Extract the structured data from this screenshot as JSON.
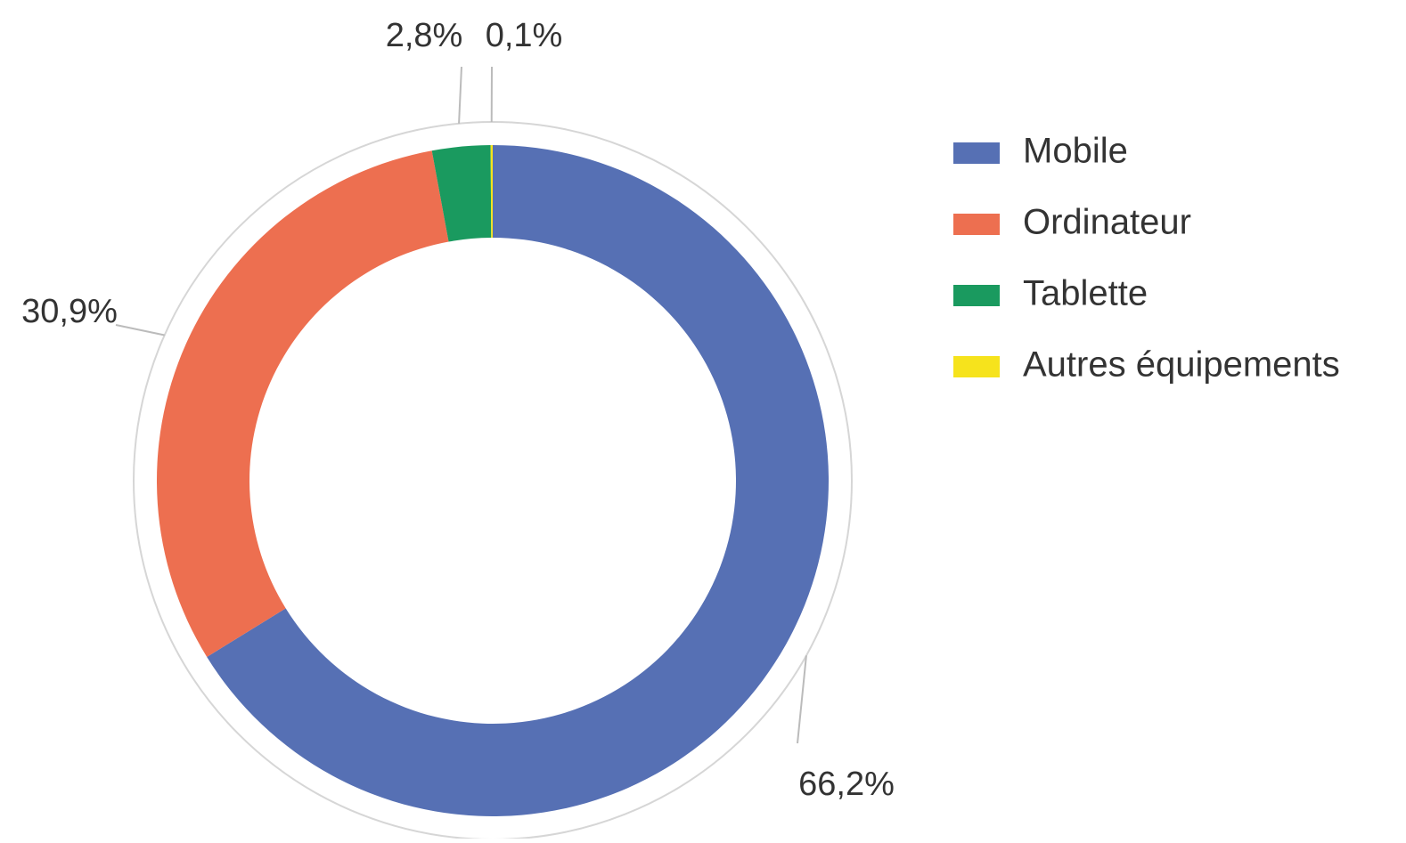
{
  "chart_data": {
    "type": "pie",
    "donut": true,
    "categories": [
      "Mobile",
      "Ordinateur",
      "Tablette",
      "Autres équipements"
    ],
    "values": [
      66.2,
      30.9,
      2.8,
      0.1
    ],
    "value_labels": [
      "66,2%",
      "30,9%",
      "2,8%",
      "0,1%"
    ],
    "colors": [
      "#5670b4",
      "#ed6f50",
      "#1a9a5f",
      "#f6e31c"
    ],
    "legend": "right"
  }
}
